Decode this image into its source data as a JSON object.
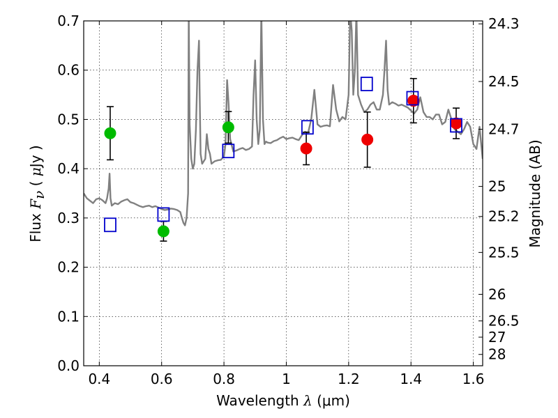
{
  "chart_data": {
    "type": "scatter",
    "xlabel": "Wavelength  λ (μm)",
    "xlabel_parts": {
      "main": "Wavelength  ",
      "symbol": "λ",
      "unit": " (μm)"
    },
    "ylabel": "Flux  Fν  ( μJy )",
    "ylabel_parts": {
      "main": "Flux  ",
      "symbol": "F",
      "sub": "ν",
      "unit_open": "  ( ",
      "mu": "μ",
      "unit_close": "Jy )"
    },
    "y2label": "Magnitude (AB)",
    "xlim": [
      0.35,
      1.63
    ],
    "ylim": [
      0.0,
      0.7
    ],
    "grid": true,
    "xticks": [
      0.4,
      0.6,
      0.8,
      1.0,
      1.2,
      1.4,
      1.6
    ],
    "xtick_labels": [
      "0.4",
      "0.6",
      "0.8",
      "1",
      "1.2",
      "1.4",
      "1.6"
    ],
    "yticks": [
      0.0,
      0.1,
      0.2,
      0.3,
      0.4,
      0.5,
      0.6,
      0.7
    ],
    "ytick_labels": [
      "0.0",
      "0.1",
      "0.2",
      "0.3",
      "0.4",
      "0.5",
      "0.6",
      "0.7"
    ],
    "y2ticks": [
      {
        "label": "24.3",
        "flux": 0.694
      },
      {
        "label": "24.5",
        "flux": 0.577
      },
      {
        "label": "24.7",
        "flux": 0.48
      },
      {
        "label": "25",
        "flux": 0.364
      },
      {
        "label": "25.2",
        "flux": 0.303
      },
      {
        "label": "25.5",
        "flux": 0.23
      },
      {
        "label": "26",
        "flux": 0.145
      },
      {
        "label": "26.5",
        "flux": 0.091
      },
      {
        "label": "27",
        "flux": 0.058
      },
      {
        "label": "28",
        "flux": 0.023
      }
    ],
    "colors": {
      "model": "#808080",
      "green": "#00bb00",
      "red": "#ee0000",
      "blue": "#0000cc",
      "errorbar": "#000000"
    },
    "series": [
      {
        "marker": "circle-green",
        "points": [
          {
            "x": 0.435,
            "y": 0.472,
            "err": 0.054
          },
          {
            "x": 0.606,
            "y": 0.273,
            "err": 0.02
          },
          {
            "x": 0.814,
            "y": 0.484,
            "err": 0.032
          }
        ]
      },
      {
        "marker": "circle-red",
        "points": [
          {
            "x": 1.064,
            "y": 0.441,
            "err": 0.033
          },
          {
            "x": 1.26,
            "y": 0.459,
            "err": 0.056
          },
          {
            "x": 1.408,
            "y": 0.538,
            "err": 0.045
          },
          {
            "x": 1.545,
            "y": 0.492,
            "err": 0.031
          }
        ]
      },
      {
        "marker": "square-blue-open",
        "points": [
          {
            "x": 0.435,
            "y": 0.286
          },
          {
            "x": 0.606,
            "y": 0.307
          },
          {
            "x": 0.814,
            "y": 0.436
          },
          {
            "x": 1.068,
            "y": 0.484
          },
          {
            "x": 1.258,
            "y": 0.572
          },
          {
            "x": 1.405,
            "y": 0.543
          },
          {
            "x": 1.545,
            "y": 0.488
          }
        ]
      },
      {
        "marker": "line-grey",
        "x": [
          0.35,
          0.36,
          0.37,
          0.38,
          0.39,
          0.4,
          0.41,
          0.42,
          0.425,
          0.43,
          0.433,
          0.436,
          0.44,
          0.45,
          0.46,
          0.47,
          0.48,
          0.49,
          0.5,
          0.51,
          0.52,
          0.53,
          0.54,
          0.55,
          0.56,
          0.57,
          0.58,
          0.59,
          0.6,
          0.61,
          0.62,
          0.63,
          0.64,
          0.65,
          0.66,
          0.665,
          0.67,
          0.675,
          0.68,
          0.685,
          0.687,
          0.69,
          0.695,
          0.7,
          0.705,
          0.71,
          0.715,
          0.72,
          0.722,
          0.725,
          0.73,
          0.74,
          0.745,
          0.75,
          0.755,
          0.76,
          0.77,
          0.78,
          0.79,
          0.8,
          0.805,
          0.81,
          0.815,
          0.82,
          0.83,
          0.84,
          0.85,
          0.86,
          0.87,
          0.88,
          0.89,
          0.895,
          0.9,
          0.905,
          0.91,
          0.915,
          0.92,
          0.925,
          0.93,
          0.935,
          0.94,
          0.95,
          0.96,
          0.97,
          0.98,
          0.99,
          1.0,
          1.01,
          1.02,
          1.03,
          1.04,
          1.05,
          1.06,
          1.07,
          1.08,
          1.09,
          1.1,
          1.11,
          1.12,
          1.13,
          1.14,
          1.15,
          1.16,
          1.17,
          1.18,
          1.19,
          1.2,
          1.205,
          1.21,
          1.215,
          1.22,
          1.225,
          1.23,
          1.24,
          1.25,
          1.26,
          1.27,
          1.28,
          1.29,
          1.3,
          1.31,
          1.315,
          1.32,
          1.325,
          1.33,
          1.34,
          1.35,
          1.36,
          1.37,
          1.38,
          1.39,
          1.4,
          1.41,
          1.42,
          1.43,
          1.44,
          1.45,
          1.46,
          1.47,
          1.48,
          1.49,
          1.5,
          1.51,
          1.52,
          1.53,
          1.54,
          1.55,
          1.56,
          1.57,
          1.58,
          1.59,
          1.6,
          1.61,
          1.62,
          1.63
        ],
        "y": [
          0.35,
          0.34,
          0.335,
          0.33,
          0.338,
          0.34,
          0.336,
          0.33,
          0.34,
          0.36,
          0.39,
          0.34,
          0.325,
          0.33,
          0.328,
          0.333,
          0.336,
          0.338,
          0.332,
          0.33,
          0.327,
          0.324,
          0.322,
          0.324,
          0.325,
          0.322,
          0.324,
          0.321,
          0.318,
          0.316,
          0.317,
          0.319,
          0.318,
          0.316,
          0.312,
          0.3,
          0.29,
          0.285,
          0.3,
          0.35,
          0.72,
          0.49,
          0.42,
          0.4,
          0.41,
          0.48,
          0.6,
          0.66,
          0.56,
          0.43,
          0.41,
          0.42,
          0.47,
          0.44,
          0.43,
          0.41,
          0.415,
          0.417,
          0.418,
          0.425,
          0.45,
          0.58,
          0.53,
          0.46,
          0.435,
          0.437,
          0.44,
          0.442,
          0.438,
          0.44,
          0.445,
          0.55,
          0.62,
          0.5,
          0.45,
          0.48,
          0.72,
          0.5,
          0.45,
          0.455,
          0.453,
          0.452,
          0.456,
          0.458,
          0.462,
          0.465,
          0.46,
          0.462,
          0.463,
          0.46,
          0.458,
          0.468,
          0.475,
          0.473,
          0.5,
          0.56,
          0.49,
          0.485,
          0.487,
          0.488,
          0.486,
          0.57,
          0.52,
          0.496,
          0.505,
          0.5,
          0.55,
          0.72,
          0.68,
          0.55,
          0.6,
          0.72,
          0.55,
          0.53,
          0.515,
          0.52,
          0.53,
          0.535,
          0.52,
          0.52,
          0.55,
          0.6,
          0.66,
          0.56,
          0.53,
          0.535,
          0.532,
          0.528,
          0.53,
          0.527,
          0.524,
          0.518,
          0.512,
          0.52,
          0.545,
          0.515,
          0.505,
          0.505,
          0.5,
          0.51,
          0.51,
          0.49,
          0.495,
          0.52,
          0.5,
          0.48,
          0.475,
          0.47,
          0.48,
          0.495,
          0.485,
          0.45,
          0.44,
          0.485,
          0.42
        ]
      }
    ]
  }
}
